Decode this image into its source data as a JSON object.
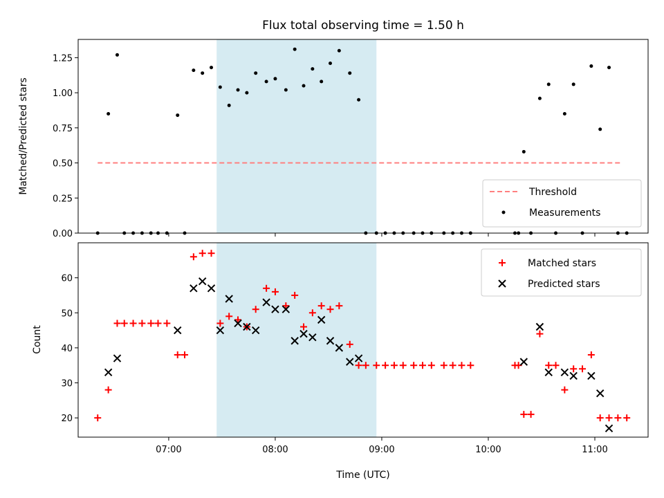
{
  "chart_data": [
    {
      "type": "scatter",
      "title": "Flux total observing time = 1.50 h",
      "xlabel": "",
      "ylabel": "Matched/Predicted stars",
      "ylim": [
        0,
        1.38
      ],
      "yticks": [
        "0.00",
        "0.25",
        "0.50",
        "0.75",
        "1.00",
        "1.25"
      ],
      "ytick_values": [
        0,
        0.25,
        0.5,
        0.75,
        1.0,
        1.25
      ],
      "shaded_span": [
        "07:27",
        "08:57"
      ],
      "shade_color": "#add8e6",
      "threshold": {
        "name": "Threshold",
        "y": 0.5,
        "x": [
          "06:20",
          "11:15"
        ],
        "color": "#ff7f7f"
      },
      "series": [
        {
          "name": "Measurements",
          "color": "#000000",
          "points": [
            [
              "06:20",
              0.0
            ],
            [
              "06:26",
              0.85
            ],
            [
              "06:31",
              1.27
            ],
            [
              "06:35",
              0.0
            ],
            [
              "06:40",
              0.0
            ],
            [
              "06:45",
              0.0
            ],
            [
              "06:50",
              0.0
            ],
            [
              "06:54",
              0.0
            ],
            [
              "06:59",
              0.0
            ],
            [
              "07:05",
              0.84
            ],
            [
              "07:09",
              0.0
            ],
            [
              "07:14",
              1.16
            ],
            [
              "07:19",
              1.14
            ],
            [
              "07:24",
              1.18
            ],
            [
              "07:29",
              1.04
            ],
            [
              "07:34",
              0.91
            ],
            [
              "07:39",
              1.02
            ],
            [
              "07:44",
              1.0
            ],
            [
              "07:49",
              1.14
            ],
            [
              "07:55",
              1.08
            ],
            [
              "08:00",
              1.1
            ],
            [
              "08:06",
              1.02
            ],
            [
              "08:11",
              1.31
            ],
            [
              "08:16",
              1.05
            ],
            [
              "08:21",
              1.17
            ],
            [
              "08:26",
              1.08
            ],
            [
              "08:31",
              1.21
            ],
            [
              "08:36",
              1.3
            ],
            [
              "08:42",
              1.14
            ],
            [
              "08:47",
              0.95
            ],
            [
              "08:51",
              0.0
            ],
            [
              "08:57",
              0.0
            ],
            [
              "09:02",
              0.0
            ],
            [
              "09:07",
              0.0
            ],
            [
              "09:12",
              0.0
            ],
            [
              "09:18",
              0.0
            ],
            [
              "09:23",
              0.0
            ],
            [
              "09:28",
              0.0
            ],
            [
              "09:35",
              0.0
            ],
            [
              "09:40",
              0.0
            ],
            [
              "09:45",
              0.0
            ],
            [
              "09:50",
              0.0
            ],
            [
              "10:15",
              0.0
            ],
            [
              "10:17",
              0.0
            ],
            [
              "10:20",
              0.58
            ],
            [
              "10:24",
              0.0
            ],
            [
              "10:29",
              0.96
            ],
            [
              "10:34",
              1.06
            ],
            [
              "10:38",
              0.0
            ],
            [
              "10:43",
              0.85
            ],
            [
              "10:48",
              1.06
            ],
            [
              "10:53",
              0.0
            ],
            [
              "10:58",
              1.19
            ],
            [
              "11:03",
              0.74
            ],
            [
              "11:08",
              1.18
            ],
            [
              "11:13",
              0.0
            ],
            [
              "11:18",
              0.0
            ]
          ]
        }
      ],
      "legend": {
        "position": "lower right"
      }
    },
    {
      "type": "scatter",
      "title": "",
      "xlabel": "Time (UTC)",
      "ylabel": "Count",
      "ylim": [
        14.5,
        70
      ],
      "yticks": [
        "20",
        "30",
        "40",
        "50",
        "60"
      ],
      "ytick_values": [
        20,
        30,
        40,
        50,
        60
      ],
      "xticks": [
        "07:00",
        "08:00",
        "09:00",
        "10:00",
        "11:00"
      ],
      "xlim": [
        "06:09",
        "11:30"
      ],
      "shaded_span": [
        "07:27",
        "08:57"
      ],
      "series": [
        {
          "name": "Matched stars",
          "color": "#ff0000",
          "marker": "+",
          "points": [
            [
              "06:20",
              20
            ],
            [
              "06:26",
              28
            ],
            [
              "06:31",
              47
            ],
            [
              "06:35",
              47
            ],
            [
              "06:40",
              47
            ],
            [
              "06:45",
              47
            ],
            [
              "06:50",
              47
            ],
            [
              "06:54",
              47
            ],
            [
              "06:59",
              47
            ],
            [
              "07:05",
              38
            ],
            [
              "07:09",
              38
            ],
            [
              "07:14",
              66
            ],
            [
              "07:19",
              67
            ],
            [
              "07:24",
              67
            ],
            [
              "07:29",
              47
            ],
            [
              "07:34",
              49
            ],
            [
              "07:39",
              48
            ],
            [
              "07:44",
              46
            ],
            [
              "07:49",
              51
            ],
            [
              "07:55",
              57
            ],
            [
              "08:00",
              56
            ],
            [
              "08:06",
              52
            ],
            [
              "08:11",
              55
            ],
            [
              "08:16",
              46
            ],
            [
              "08:21",
              50
            ],
            [
              "08:26",
              52
            ],
            [
              "08:31",
              51
            ],
            [
              "08:36",
              52
            ],
            [
              "08:42",
              41
            ],
            [
              "08:47",
              35
            ],
            [
              "08:51",
              35
            ],
            [
              "08:57",
              35
            ],
            [
              "09:02",
              35
            ],
            [
              "09:07",
              35
            ],
            [
              "09:12",
              35
            ],
            [
              "09:18",
              35
            ],
            [
              "09:23",
              35
            ],
            [
              "09:28",
              35
            ],
            [
              "09:35",
              35
            ],
            [
              "09:40",
              35
            ],
            [
              "09:45",
              35
            ],
            [
              "09:50",
              35
            ],
            [
              "10:15",
              35
            ],
            [
              "10:17",
              35
            ],
            [
              "10:20",
              21
            ],
            [
              "10:24",
              21
            ],
            [
              "10:29",
              44
            ],
            [
              "10:34",
              35
            ],
            [
              "10:38",
              35
            ],
            [
              "10:43",
              28
            ],
            [
              "10:48",
              34
            ],
            [
              "10:53",
              34
            ],
            [
              "10:58",
              38
            ],
            [
              "11:03",
              20
            ],
            [
              "11:08",
              20
            ],
            [
              "11:13",
              20
            ],
            [
              "11:18",
              20
            ]
          ]
        },
        {
          "name": "Predicted stars",
          "color": "#000000",
          "marker": "x",
          "points": [
            [
              "06:26",
              33
            ],
            [
              "06:31",
              37
            ],
            [
              "07:05",
              45
            ],
            [
              "07:14",
              57
            ],
            [
              "07:19",
              59
            ],
            [
              "07:24",
              57
            ],
            [
              "07:29",
              45
            ],
            [
              "07:34",
              54
            ],
            [
              "07:39",
              47
            ],
            [
              "07:44",
              46
            ],
            [
              "07:49",
              45
            ],
            [
              "07:55",
              53
            ],
            [
              "08:00",
              51
            ],
            [
              "08:06",
              51
            ],
            [
              "08:11",
              42
            ],
            [
              "08:16",
              44
            ],
            [
              "08:21",
              43
            ],
            [
              "08:26",
              48
            ],
            [
              "08:31",
              42
            ],
            [
              "08:36",
              40
            ],
            [
              "08:42",
              36
            ],
            [
              "08:47",
              37
            ],
            [
              "10:20",
              36
            ],
            [
              "10:29",
              46
            ],
            [
              "10:34",
              33
            ],
            [
              "10:43",
              33
            ],
            [
              "10:48",
              32
            ],
            [
              "10:58",
              32
            ],
            [
              "11:03",
              27
            ],
            [
              "11:08",
              17
            ]
          ]
        }
      ],
      "legend": {
        "position": "upper right"
      }
    }
  ]
}
